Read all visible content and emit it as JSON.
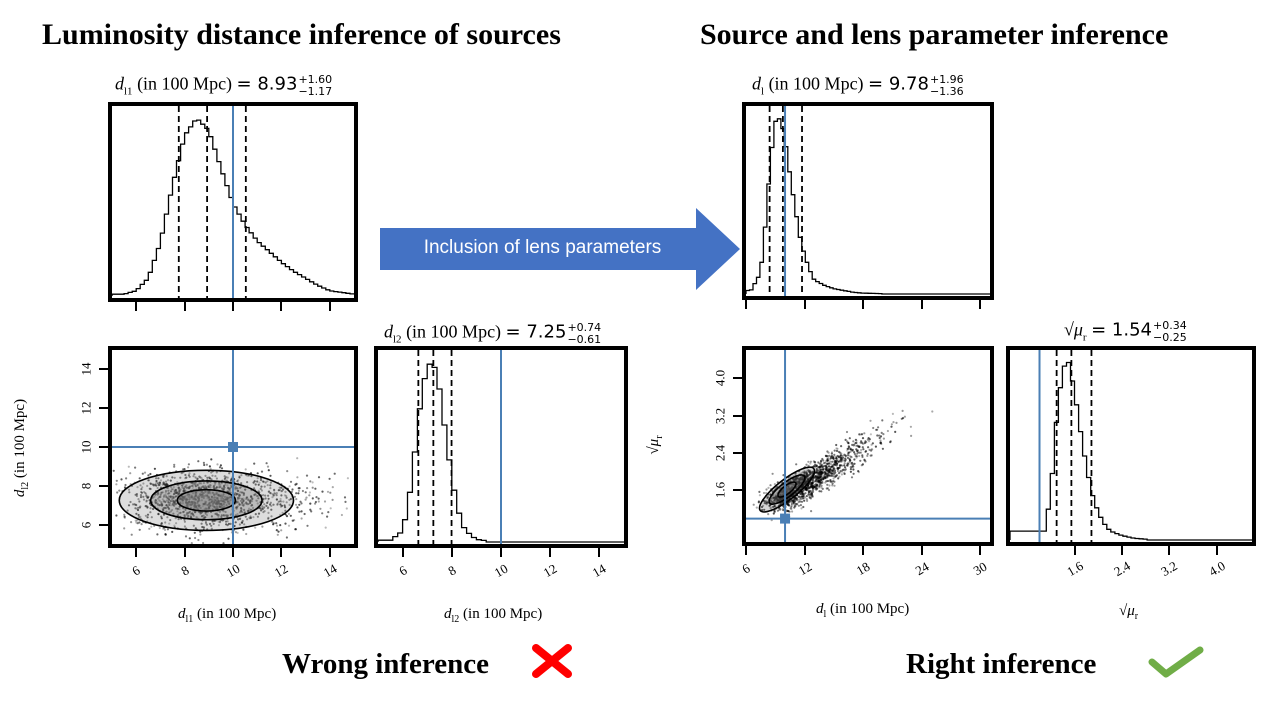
{
  "headings": {
    "left": "Luminosity distance inference of sources",
    "right": "Source and lens parameter inference"
  },
  "arrow": {
    "label": "Inclusion of lens parameters",
    "color": "#4472c4"
  },
  "verdicts": {
    "wrong": "Wrong inference",
    "right": "Right inference",
    "wrong_color": "#ff0000",
    "right_color": "#70ad47"
  },
  "panel_titles": {
    "dl1": {
      "sym": "d",
      "sub": "l1",
      "unit": "(in 100 Mpc)",
      "val": "= 8.93",
      "plus": "+1.60",
      "minus": "−1.17"
    },
    "dl2": {
      "sym": "d",
      "sub": "l2",
      "unit": "(in 100 Mpc)",
      "val": "= 7.25",
      "plus": "+0.74",
      "minus": "−0.61"
    },
    "dl": {
      "sym": "d",
      "sub": "l",
      "unit": "(in 100 Mpc)",
      "val": "= 9.78",
      "plus": "+1.96",
      "minus": "−1.36"
    },
    "mur": {
      "sym": "√μ",
      "sub": "r",
      "unit": "",
      "val": "= 1.54",
      "plus": "+0.34",
      "minus": "−0.25"
    }
  },
  "axis_labels": {
    "left_x1": {
      "sym": "d",
      "sub": "l1",
      "unit": "(in 100 Mpc)"
    },
    "left_y": {
      "sym": "d",
      "sub": "l2",
      "unit": "(in 100 Mpc)"
    },
    "left_x2": {
      "sym": "d",
      "sub": "l2",
      "unit": "(in 100 Mpc)"
    },
    "right_x1": {
      "sym": "d",
      "sub": "l",
      "unit": "(in 100 Mpc)"
    },
    "right_y": {
      "sym": "√μ",
      "sub": "r",
      "unit": ""
    },
    "right_x2": {
      "sym": "√μ",
      "sub": "r",
      "unit": ""
    }
  },
  "chart_data": [
    {
      "type": "histogram",
      "id": "dl1-marginal",
      "title": "dl1 (in 100 Mpc) = 8.93 +1.60 −1.17",
      "xlim": [
        5,
        15
      ],
      "truth": 10,
      "quantiles": [
        7.76,
        8.93,
        10.53
      ],
      "x": [
        5.5,
        6.0,
        6.5,
        7.0,
        7.5,
        8.0,
        8.5,
        9.0,
        9.5,
        10.0,
        10.5,
        11.0,
        11.5,
        12.0,
        12.5,
        13.0,
        13.5,
        14.0,
        14.5,
        15.0
      ],
      "density": [
        0.01,
        0.03,
        0.1,
        0.3,
        0.62,
        0.9,
        1.0,
        0.93,
        0.72,
        0.52,
        0.4,
        0.31,
        0.25,
        0.19,
        0.14,
        0.1,
        0.06,
        0.03,
        0.02,
        0.01
      ]
    },
    {
      "type": "scatter",
      "id": "dl1-dl2-joint",
      "xlabel": "dl1 (in 100 Mpc)",
      "ylabel": "dl2 (in 100 Mpc)",
      "xlim": [
        5,
        15
      ],
      "ylim": [
        5,
        15
      ],
      "xticks": [
        "6",
        "8",
        "10",
        "12",
        "14"
      ],
      "yticks": [
        "6",
        "8",
        "10",
        "12",
        "14"
      ],
      "truth": [
        10,
        10
      ],
      "peak": [
        8.4,
        7.2
      ]
    },
    {
      "type": "histogram",
      "id": "dl2-marginal",
      "title": "dl2 (in 100 Mpc) = 7.25 +0.74 −0.61",
      "xlabel": "dl2 (in 100 Mpc)",
      "xlim": [
        5,
        15
      ],
      "xticks": [
        "6",
        "8",
        "10",
        "12",
        "14"
      ],
      "truth": 10,
      "quantiles": [
        6.64,
        7.25,
        7.99
      ],
      "x": [
        5.5,
        6.0,
        6.25,
        6.5,
        6.75,
        7.0,
        7.25,
        7.5,
        7.75,
        8.0,
        8.25,
        8.5,
        8.75,
        9.0,
        9.5
      ],
      "density": [
        0.01,
        0.06,
        0.22,
        0.5,
        0.8,
        0.98,
        1.0,
        0.85,
        0.6,
        0.36,
        0.18,
        0.08,
        0.04,
        0.015,
        0.005
      ]
    },
    {
      "type": "histogram",
      "id": "dl-marginal",
      "title": "dl (in 100 Mpc) = 9.78 +1.96 −1.36",
      "xlim": [
        6,
        31
      ],
      "truth": 10,
      "quantiles": [
        8.42,
        9.78,
        11.74
      ],
      "x": [
        6.5,
        7.5,
        8.0,
        8.5,
        9.0,
        9.5,
        10.0,
        10.5,
        11.0,
        11.5,
        12.0,
        12.5,
        13.0,
        14.0,
        15.0,
        16.0,
        17.0,
        18.0,
        20.0
      ],
      "density": [
        0.02,
        0.12,
        0.4,
        0.75,
        0.98,
        1.0,
        0.88,
        0.68,
        0.5,
        0.33,
        0.22,
        0.14,
        0.08,
        0.05,
        0.03,
        0.02,
        0.01,
        0.005,
        0.002
      ]
    },
    {
      "type": "scatter",
      "id": "dl-mur-joint",
      "xlabel": "dl (in 100 Mpc)",
      "ylabel": "√μr",
      "xlim": [
        6,
        31
      ],
      "ylim": [
        0.5,
        4.6
      ],
      "xticks": [
        "6",
        "12",
        "18",
        "24",
        "30"
      ],
      "yticks": [
        "1.6",
        "2.4",
        "3.2",
        "4.0"
      ],
      "truth": [
        10,
        1.0
      ],
      "peak": [
        9.8,
        1.5
      ]
    },
    {
      "type": "histogram",
      "id": "mur-marginal",
      "title": "√μr = 1.54 +0.34 −0.25",
      "xlabel": "√μr",
      "xlim": [
        0.5,
        4.6
      ],
      "xticks": [
        "1.6",
        "2.4",
        "3.2",
        "4.0"
      ],
      "truth": 1.0,
      "quantiles": [
        1.29,
        1.54,
        1.88
      ],
      "x": [
        1.1,
        1.2,
        1.3,
        1.4,
        1.5,
        1.6,
        1.7,
        1.8,
        1.9,
        2.0,
        2.1,
        2.2,
        2.4,
        2.6,
        2.8
      ],
      "density": [
        0.05,
        0.3,
        0.72,
        0.97,
        1.0,
        0.82,
        0.6,
        0.4,
        0.25,
        0.15,
        0.09,
        0.05,
        0.025,
        0.01,
        0.005
      ]
    }
  ]
}
